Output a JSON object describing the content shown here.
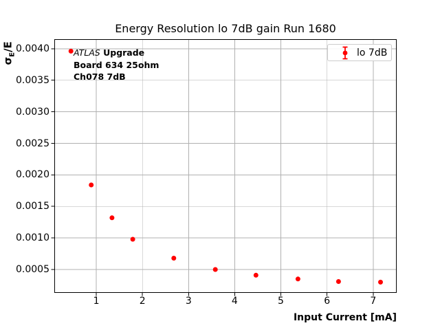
{
  "colors": {
    "marker": "#ff0000",
    "grid": "#b0b0b0",
    "axis": "#000000",
    "legend_border": "#cccccc",
    "background": "#ffffff"
  },
  "axes": {
    "ylabel_sigma": "σ",
    "ylabel_sub": "E",
    "ylabel_rest": "/E"
  },
  "annotation": {
    "line1_italic": "ATLAS",
    "line1_bold": "Upgrade",
    "line2": "Board 634 25ohm",
    "line3": "Ch078 7dB"
  },
  "legend": {
    "label": "lo 7dB",
    "marker_color": "#ff0000",
    "marker_style": "errorbar-dot"
  },
  "chart_data": {
    "type": "scatter",
    "title": "Energy Resolution lo 7dB gain Run 1680",
    "xlabel": "Input Current [mA]",
    "ylabel": "σE/E",
    "xlim": [
      0.09,
      7.51
    ],
    "ylim": [
      0.00013,
      0.00415
    ],
    "xticks": [
      1,
      2,
      3,
      4,
      5,
      6,
      7
    ],
    "ytick_labels": [
      "0.0005",
      "0.0010",
      "0.0015",
      "0.0020",
      "0.0025",
      "0.0030",
      "0.0035",
      "0.0040"
    ],
    "grid": true,
    "legend_position": "upper right",
    "series": [
      {
        "name": "lo 7dB",
        "color": "#ff0000",
        "marker": "circle",
        "x": [
          0.45,
          0.89,
          1.34,
          1.79,
          2.68,
          3.58,
          4.46,
          5.37,
          6.25,
          7.16
        ],
        "y": [
          0.00396,
          0.00184,
          0.00132,
          0.00098,
          0.00068,
          0.0005,
          0.00041,
          0.00035,
          0.00031,
          0.0003
        ]
      }
    ]
  }
}
